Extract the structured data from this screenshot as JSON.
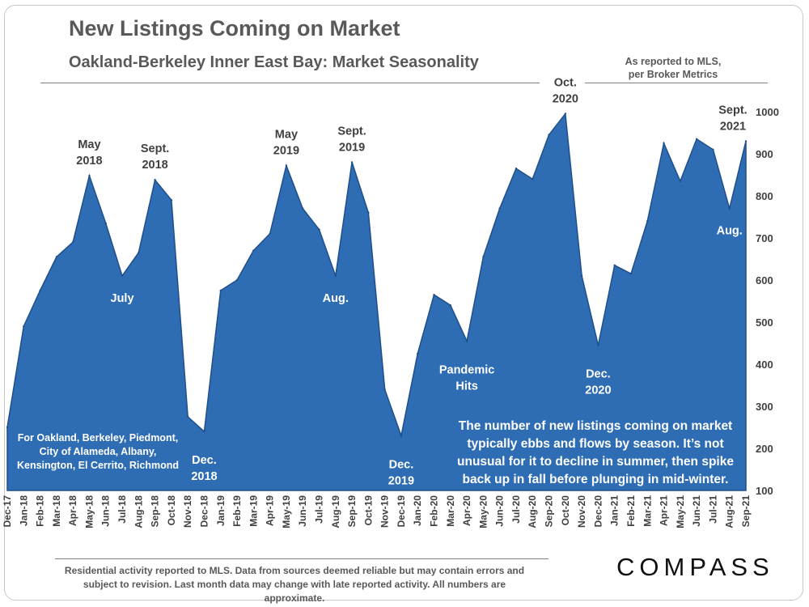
{
  "header": {
    "title": "New Listings Coming on Market",
    "subtitle": "Oakland-Berkeley Inner East Bay: Market Seasonality",
    "source_note_line1": "As reported to MLS,",
    "source_note_line2": "per Broker Metrics"
  },
  "footer": {
    "footnote": "Residential activity reported to MLS. Data from sources deemed reliable but may contain errors and subject to revision. Last month data may change with late reported activity. All numbers are approximate.",
    "logo": "COMPASS"
  },
  "colors": {
    "area_fill": "#2e6db4",
    "area_edge": "#1f4f8a",
    "label_dark": "#404040",
    "label_light": "#ffffff",
    "axis_text": "#404040"
  },
  "chart_data": {
    "type": "area",
    "title": "New Listings Coming on Market",
    "subtitle": "Oakland-Berkeley Inner East Bay: Market Seasonality",
    "xlabel": "",
    "ylabel": "",
    "ylim": [
      100,
      1000
    ],
    "yticks": [
      100,
      200,
      300,
      400,
      500,
      600,
      700,
      800,
      900,
      1000
    ],
    "y_axis_side": "right",
    "grid": false,
    "categories": [
      "Dec-17",
      "Jan-18",
      "Feb-18",
      "Mar-18",
      "Apr-18",
      "May-18",
      "Jun-18",
      "Jul-18",
      "Aug-18",
      "Sep-18",
      "Oct-18",
      "Nov-18",
      "Dec-18",
      "Jan-19",
      "Feb-19",
      "Mar-19",
      "Apr-19",
      "May-19",
      "Jun-19",
      "Jul-19",
      "Aug-19",
      "Sep-19",
      "Oct-19",
      "Nov-19",
      "Dec-19",
      "Jan-20",
      "Feb-20",
      "Mar-20",
      "Apr-20",
      "May-20",
      "Jun-20",
      "Jul-20",
      "Aug-20",
      "Sep-20",
      "Oct-20",
      "Nov-20",
      "Dec-20",
      "Jan-21",
      "Feb-21",
      "Mar-21",
      "Apr-21",
      "May-21",
      "Jun-21",
      "Jul-21",
      "Aug-21",
      "Sep-21"
    ],
    "values": [
      250,
      490,
      575,
      655,
      690,
      848,
      735,
      610,
      665,
      838,
      790,
      275,
      240,
      575,
      600,
      670,
      710,
      872,
      770,
      720,
      610,
      880,
      760,
      340,
      230,
      425,
      565,
      540,
      455,
      655,
      770,
      865,
      840,
      945,
      995,
      610,
      445,
      635,
      615,
      740,
      925,
      835,
      935,
      910,
      770,
      930
    ],
    "annotations": [
      {
        "index": 5,
        "lines": [
          "May",
          "2018"
        ],
        "style": "dark",
        "placement": "above"
      },
      {
        "index": 7,
        "lines": [
          "July"
        ],
        "style": "light",
        "placement": "below"
      },
      {
        "index": 9,
        "lines": [
          "Sept.",
          "2018"
        ],
        "style": "dark",
        "placement": "above"
      },
      {
        "index": 12,
        "lines": [
          "Dec.",
          "2018"
        ],
        "style": "light",
        "placement": "below"
      },
      {
        "index": 17,
        "lines": [
          "May",
          "2019"
        ],
        "style": "dark",
        "placement": "above"
      },
      {
        "index": 20,
        "lines": [
          "Aug."
        ],
        "style": "light",
        "placement": "below"
      },
      {
        "index": 21,
        "lines": [
          "Sept.",
          "2019"
        ],
        "style": "dark",
        "placement": "above"
      },
      {
        "index": 24,
        "lines": [
          "Dec.",
          "2019"
        ],
        "style": "light",
        "placement": "below"
      },
      {
        "index": 28,
        "lines": [
          "Pandemic",
          "Hits"
        ],
        "style": "light",
        "placement": "below"
      },
      {
        "index": 34,
        "lines": [
          "Oct.",
          "2020"
        ],
        "style": "dark",
        "placement": "above"
      },
      {
        "index": 36,
        "lines": [
          "Dec.",
          "2020"
        ],
        "style": "light",
        "placement": "below"
      },
      {
        "index": 44,
        "lines": [
          "Aug."
        ],
        "style": "light",
        "placement": "below"
      },
      {
        "index": 45,
        "lines": [
          "Sept.",
          "2021"
        ],
        "style": "dark",
        "placement": "above"
      }
    ],
    "notes": [
      {
        "lines": [
          "For Oakland, Berkeley, Piedmont,",
          "City of Alameda, Albany,",
          "Kensington, El Cerrito, Richmond"
        ],
        "position": "bottom-left"
      },
      {
        "lines": [
          "The number of new listings coming on market",
          "typically ebbs and flows by season. It’s not",
          "unusual for it to decline in summer, then spike",
          "back up in fall before plunging in mid-winter."
        ],
        "position": "bottom-right"
      }
    ]
  }
}
